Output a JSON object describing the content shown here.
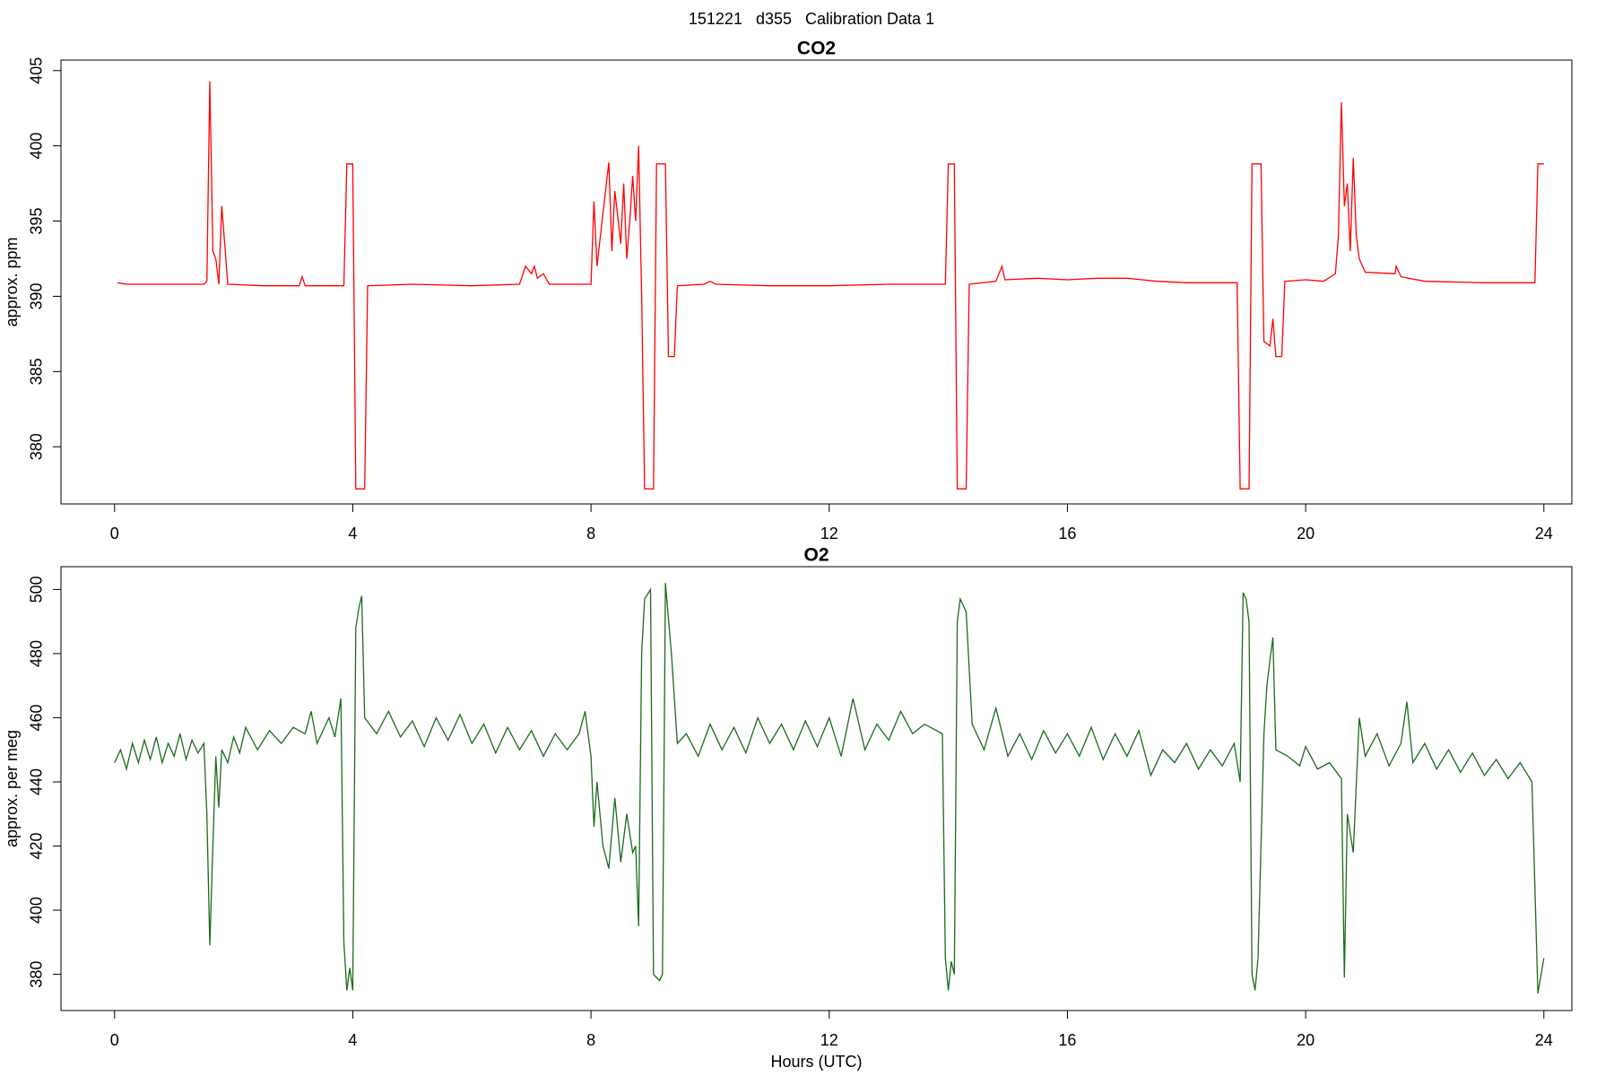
{
  "page_title": "151221   d355   Calibration Data 1",
  "chart_data": [
    {
      "type": "line",
      "title": "CO2",
      "ylabel": "approx. ppm",
      "color": "#ff0000",
      "xlim": [
        -0.9,
        24.47
      ],
      "xticks": [
        0,
        4,
        8,
        12,
        16,
        20,
        24
      ],
      "ylim": [
        376.2,
        405.7
      ],
      "yticks": [
        380,
        385,
        390,
        395,
        400,
        405
      ],
      "x": [
        0.05,
        0.2,
        0.5,
        1.0,
        1.5,
        1.55,
        1.6,
        1.65,
        1.7,
        1.75,
        1.8,
        1.85,
        1.9,
        2.5,
        3.1,
        3.15,
        3.2,
        3.85,
        3.9,
        4.0,
        4.05,
        4.2,
        4.25,
        5,
        6,
        6.8,
        6.9,
        7.0,
        7.05,
        7.1,
        7.2,
        7.3,
        8.0,
        8.05,
        8.1,
        8.2,
        8.3,
        8.35,
        8.4,
        8.5,
        8.55,
        8.6,
        8.65,
        8.7,
        8.75,
        8.8,
        8.85,
        8.9,
        9.05,
        9.1,
        9.25,
        9.3,
        9.4,
        9.45,
        9.9,
        10,
        10.1,
        11,
        12,
        13,
        13.95,
        14.0,
        14.1,
        14.15,
        14.3,
        14.35,
        14.8,
        14.9,
        14.95,
        15.5,
        16,
        16.5,
        17,
        17.5,
        18,
        18.85,
        18.9,
        19.05,
        19.1,
        19.25,
        19.3,
        19.4,
        19.45,
        19.5,
        19.6,
        19.65,
        20,
        20.3,
        20.5,
        20.55,
        20.6,
        20.65,
        20.7,
        20.75,
        20.8,
        20.85,
        20.9,
        21.0,
        21.5,
        21.52,
        21.6,
        22,
        23,
        23.85,
        23.9,
        24.0
      ],
      "values": [
        390.9,
        390.8,
        390.8,
        390.8,
        390.8,
        391,
        404.3,
        393,
        392.5,
        390.8,
        396,
        393.5,
        390.8,
        390.7,
        390.7,
        391.3,
        390.7,
        390.7,
        398.8,
        398.8,
        377.2,
        377.2,
        390.7,
        390.8,
        390.7,
        390.8,
        392,
        391.5,
        392,
        391.2,
        391.5,
        390.8,
        390.8,
        396.3,
        392,
        395.5,
        398.9,
        393,
        397,
        393.5,
        397.5,
        392.5,
        395,
        398,
        395,
        400,
        390,
        377.2,
        377.2,
        398.8,
        398.8,
        386,
        386,
        390.7,
        390.8,
        391,
        390.8,
        390.7,
        390.7,
        390.8,
        390.8,
        398.8,
        398.8,
        377.2,
        377.2,
        390.8,
        391,
        392,
        391.1,
        391.2,
        391.1,
        391.2,
        391.2,
        391,
        390.9,
        390.9,
        377.2,
        377.2,
        398.8,
        398.8,
        387,
        386.7,
        388.5,
        386,
        386,
        391,
        391.1,
        391,
        391.5,
        394,
        402.9,
        396,
        397.5,
        393,
        399.2,
        394,
        392.5,
        391.6,
        391.5,
        392,
        391.3,
        391,
        390.9,
        390.9,
        398.8,
        398.8
      ]
    },
    {
      "type": "line",
      "title": "O2",
      "ylabel": "approx. per meg",
      "xlabel": "Hours (UTC)",
      "color": "#1a6b1a",
      "xlim": [
        -0.9,
        24.47
      ],
      "xticks": [
        0,
        4,
        8,
        12,
        16,
        20,
        24
      ],
      "ylim": [
        368.7,
        507.1
      ],
      "yticks": [
        380,
        400,
        420,
        440,
        460,
        480,
        500
      ],
      "x": [
        0,
        0.1,
        0.2,
        0.3,
        0.4,
        0.5,
        0.6,
        0.7,
        0.8,
        0.9,
        1.0,
        1.1,
        1.2,
        1.3,
        1.4,
        1.5,
        1.55,
        1.6,
        1.65,
        1.7,
        1.75,
        1.8,
        1.9,
        2.0,
        2.1,
        2.2,
        2.4,
        2.6,
        2.8,
        3.0,
        3.2,
        3.3,
        3.4,
        3.6,
        3.7,
        3.8,
        3.85,
        3.9,
        3.95,
        4.0,
        4.05,
        4.1,
        4.15,
        4.2,
        4.4,
        4.6,
        4.8,
        5.0,
        5.2,
        5.4,
        5.6,
        5.8,
        6.0,
        6.2,
        6.4,
        6.6,
        6.8,
        7.0,
        7.2,
        7.4,
        7.6,
        7.8,
        7.9,
        8.0,
        8.05,
        8.1,
        8.2,
        8.3,
        8.4,
        8.5,
        8.6,
        8.7,
        8.75,
        8.8,
        8.85,
        8.9,
        9.0,
        9.05,
        9.15,
        9.2,
        9.25,
        9.35,
        9.45,
        9.6,
        9.8,
        10,
        10.2,
        10.4,
        10.6,
        10.8,
        11.0,
        11.2,
        11.4,
        11.6,
        11.8,
        12.0,
        12.2,
        12.4,
        12.6,
        12.8,
        13.0,
        13.2,
        13.4,
        13.6,
        13.9,
        13.95,
        14.0,
        14.05,
        14.1,
        14.15,
        14.2,
        14.3,
        14.4,
        14.6,
        14.8,
        15.0,
        15.2,
        15.4,
        15.6,
        15.8,
        16.0,
        16.2,
        16.4,
        16.6,
        16.8,
        17.0,
        17.2,
        17.4,
        17.6,
        17.8,
        18.0,
        18.2,
        18.4,
        18.6,
        18.8,
        18.9,
        18.95,
        19.0,
        19.05,
        19.1,
        19.15,
        19.2,
        19.3,
        19.35,
        19.4,
        19.45,
        19.5,
        19.7,
        19.9,
        20.0,
        20.2,
        20.4,
        20.6,
        20.65,
        20.7,
        20.8,
        20.9,
        21.0,
        21.2,
        21.4,
        21.6,
        21.7,
        21.8,
        22.0,
        22.2,
        22.4,
        22.6,
        22.8,
        23.0,
        23.2,
        23.4,
        23.6,
        23.8,
        23.9,
        24.0
      ],
      "values": [
        446,
        450,
        444,
        452,
        446,
        453,
        447,
        454,
        446,
        452,
        448,
        455,
        447,
        453,
        449,
        452,
        430,
        389,
        420,
        448,
        432,
        450,
        446,
        454,
        449,
        457,
        450,
        456,
        452,
        457,
        455,
        462,
        452,
        460,
        454,
        466,
        390,
        375,
        382,
        375,
        488,
        494,
        498,
        460,
        455,
        462,
        454,
        459,
        451,
        460,
        453,
        461,
        452,
        458,
        449,
        457,
        450,
        456,
        448,
        455,
        450,
        455,
        462,
        448,
        426,
        440,
        420,
        413,
        435,
        415,
        430,
        418,
        420,
        395,
        480,
        497,
        500,
        380,
        378,
        380,
        502,
        480,
        452,
        455,
        448,
        458,
        450,
        457,
        449,
        460,
        452,
        458,
        450,
        459,
        451,
        460,
        448,
        466,
        450,
        458,
        453,
        462,
        455,
        458,
        455,
        385,
        375,
        384,
        380,
        490,
        497,
        493,
        458,
        450,
        463,
        448,
        455,
        447,
        456,
        449,
        455,
        448,
        457,
        447,
        455,
        448,
        456,
        442,
        450,
        446,
        452,
        444,
        450,
        445,
        452,
        440,
        499,
        497,
        490,
        380,
        375,
        385,
        455,
        470,
        478,
        485,
        450,
        448,
        445,
        451,
        444,
        446,
        441,
        379,
        430,
        418,
        460,
        448,
        455,
        445,
        452,
        465,
        446,
        452,
        444,
        450,
        443,
        449,
        442,
        447,
        441,
        446,
        440,
        374,
        385
      ]
    }
  ]
}
